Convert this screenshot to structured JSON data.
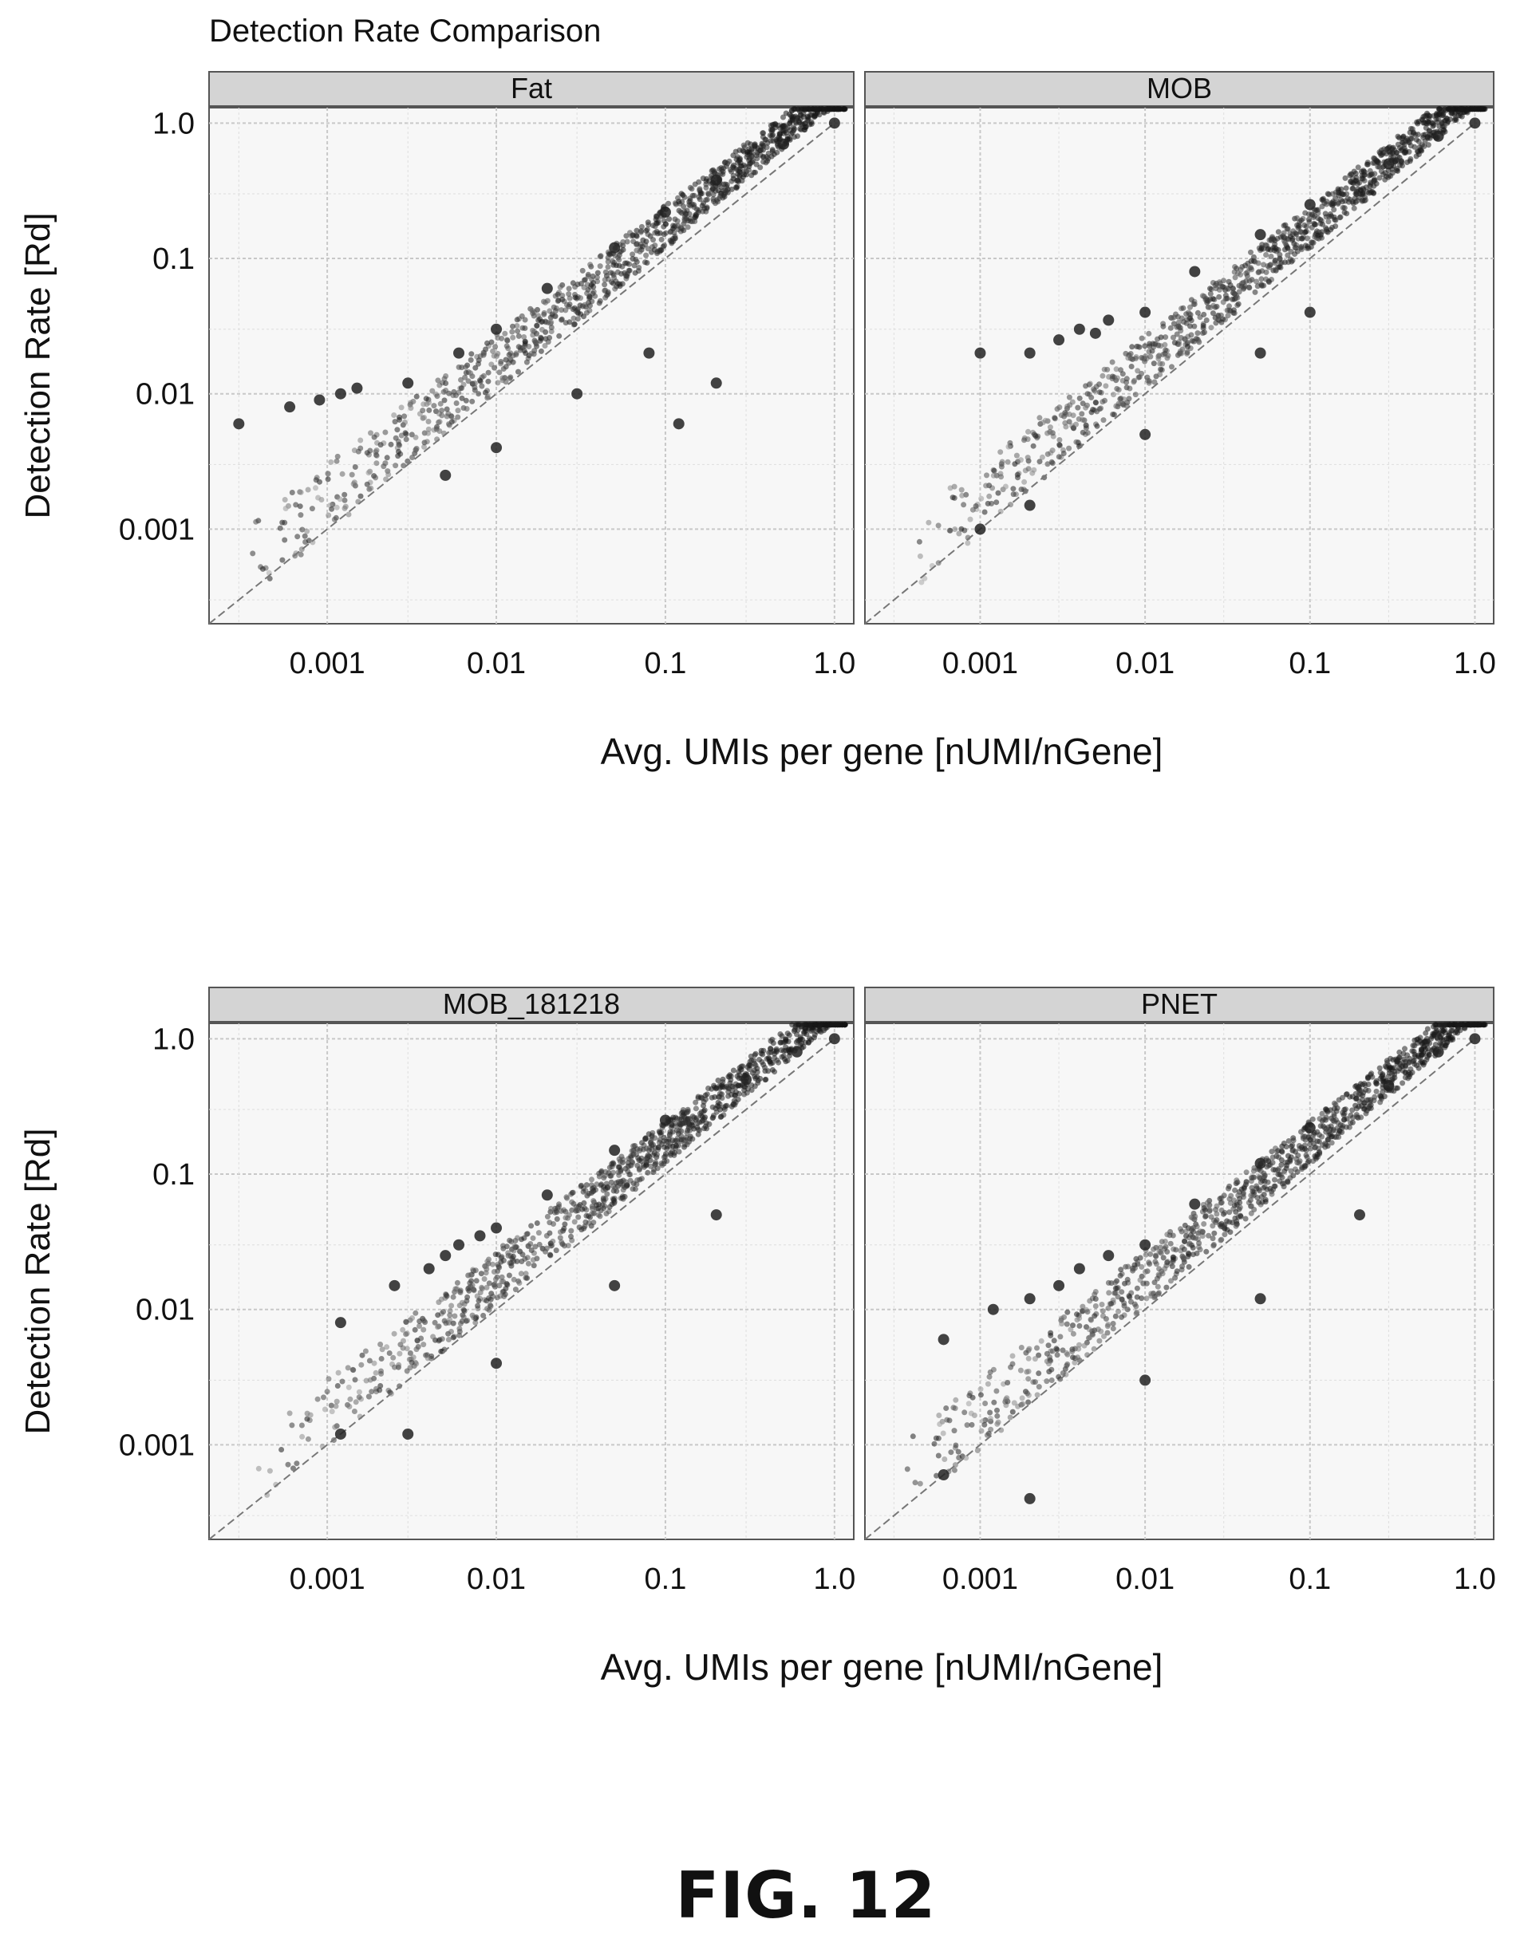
{
  "figure_title": "Detection Rate Comparison",
  "figure_label": "FIG. 12",
  "chart_data": [
    {
      "type": "scatter",
      "title": "Detection Rate Comparison",
      "panel": "Fat",
      "xlabel": "Avg. UMIs per gene [nUMI/nGene]",
      "ylabel": "Detection Rate [Rd]",
      "x_scale": "log",
      "y_scale": "log",
      "xlim": [
        0.0002,
        1.3
      ],
      "ylim": [
        0.0002,
        1.3
      ],
      "x_ticks": [
        "0.001",
        "0.01",
        "0.1",
        "1.0"
      ],
      "y_ticks": [
        "1.0",
        "0.1",
        "0.01",
        "0.001"
      ],
      "grid": true,
      "identity_line": true,
      "points": [
        [
          0.0003,
          0.006
        ],
        [
          0.0006,
          0.008
        ],
        [
          0.0009,
          0.009
        ],
        [
          0.0012,
          0.01
        ],
        [
          0.0015,
          0.011
        ],
        [
          0.003,
          0.012
        ],
        [
          0.006,
          0.02
        ],
        [
          0.01,
          0.03
        ],
        [
          0.02,
          0.06
        ],
        [
          0.05,
          0.12
        ],
        [
          0.1,
          0.22
        ],
        [
          0.2,
          0.38
        ],
        [
          0.5,
          0.7
        ],
        [
          1.0,
          1.0
        ],
        [
          0.005,
          0.0025
        ],
        [
          0.01,
          0.004
        ],
        [
          0.03,
          0.01
        ],
        [
          0.08,
          0.02
        ],
        [
          0.2,
          0.012
        ],
        [
          0.12,
          0.006
        ]
      ]
    },
    {
      "type": "scatter",
      "panel": "MOB",
      "xlabel": "Avg. UMIs per gene [nUMI/nGene]",
      "ylabel": "Detection Rate [Rd]",
      "x_scale": "log",
      "y_scale": "log",
      "xlim": [
        0.0002,
        1.3
      ],
      "ylim": [
        0.0002,
        1.3
      ],
      "x_ticks": [
        "0.001",
        "0.01",
        "0.1",
        "1.0"
      ],
      "y_ticks": [
        "1.0",
        "0.1",
        "0.01",
        "0.001"
      ],
      "grid": true,
      "identity_line": true,
      "points": [
        [
          0.001,
          0.02
        ],
        [
          0.002,
          0.02
        ],
        [
          0.003,
          0.025
        ],
        [
          0.004,
          0.03
        ],
        [
          0.005,
          0.028
        ],
        [
          0.006,
          0.035
        ],
        [
          0.01,
          0.04
        ],
        [
          0.02,
          0.08
        ],
        [
          0.05,
          0.15
        ],
        [
          0.1,
          0.25
        ],
        [
          0.3,
          0.5
        ],
        [
          0.6,
          0.8
        ],
        [
          1.0,
          1.0
        ],
        [
          0.001,
          0.001
        ],
        [
          0.002,
          0.0015
        ],
        [
          0.01,
          0.005
        ],
        [
          0.05,
          0.02
        ],
        [
          0.1,
          0.04
        ]
      ]
    },
    {
      "type": "scatter",
      "panel": "MOB_181218",
      "xlabel": "Avg. UMIs per gene [nUMI/nGene]",
      "ylabel": "Detection Rate [Rd]",
      "x_scale": "log",
      "y_scale": "log",
      "xlim": [
        0.0002,
        1.3
      ],
      "ylim": [
        0.0002,
        1.3
      ],
      "x_ticks": [
        "0.001",
        "0.01",
        "0.1",
        "1.0"
      ],
      "y_ticks": [
        "1.0",
        "0.1",
        "0.01",
        "0.001"
      ],
      "grid": true,
      "identity_line": true,
      "points": [
        [
          0.0012,
          0.008
        ],
        [
          0.0025,
          0.015
        ],
        [
          0.004,
          0.02
        ],
        [
          0.005,
          0.025
        ],
        [
          0.006,
          0.03
        ],
        [
          0.008,
          0.035
        ],
        [
          0.01,
          0.04
        ],
        [
          0.02,
          0.07
        ],
        [
          0.05,
          0.15
        ],
        [
          0.1,
          0.25
        ],
        [
          0.3,
          0.5
        ],
        [
          0.6,
          0.8
        ],
        [
          1.0,
          1.0
        ],
        [
          0.0012,
          0.0012
        ],
        [
          0.003,
          0.0012
        ],
        [
          0.01,
          0.004
        ],
        [
          0.05,
          0.015
        ],
        [
          0.2,
          0.05
        ]
      ]
    },
    {
      "type": "scatter",
      "panel": "PNET",
      "xlabel": "Avg. UMIs per gene [nUMI/nGene]",
      "ylabel": "Detection Rate [Rd]",
      "x_scale": "log",
      "y_scale": "log",
      "xlim": [
        0.0002,
        1.3
      ],
      "ylim": [
        0.0002,
        1.3
      ],
      "x_ticks": [
        "0.001",
        "0.01",
        "0.1",
        "1.0"
      ],
      "y_ticks": [
        "1.0",
        "0.1",
        "0.01",
        "0.001"
      ],
      "grid": true,
      "identity_line": true,
      "points": [
        [
          0.0006,
          0.006
        ],
        [
          0.0012,
          0.01
        ],
        [
          0.002,
          0.012
        ],
        [
          0.003,
          0.015
        ],
        [
          0.004,
          0.02
        ],
        [
          0.006,
          0.025
        ],
        [
          0.01,
          0.03
        ],
        [
          0.02,
          0.06
        ],
        [
          0.05,
          0.12
        ],
        [
          0.1,
          0.22
        ],
        [
          0.3,
          0.45
        ],
        [
          0.6,
          0.8
        ],
        [
          1.0,
          1.0
        ],
        [
          0.0006,
          0.0006
        ],
        [
          0.002,
          0.0004
        ],
        [
          0.01,
          0.003
        ],
        [
          0.05,
          0.012
        ],
        [
          0.2,
          0.05
        ]
      ]
    }
  ]
}
